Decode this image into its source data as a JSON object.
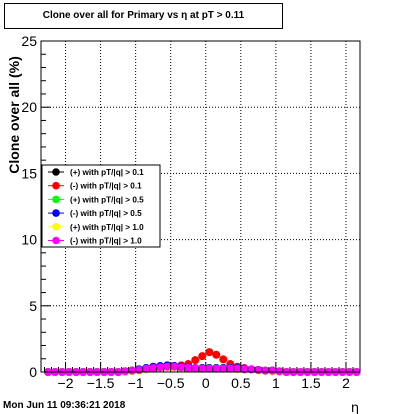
{
  "title": "Clone  over all for Primary vs   η at pT > 0.11",
  "datestamp": "Mon Jun 11 09:36:21 2018",
  "chart_data": {
    "type": "scatter",
    "title": "Clone  over all for Primary vs   η at pT > 0.11",
    "xlabel": "η",
    "ylabel": "Clone  over all (%)",
    "xlim": [
      -2.35,
      2.2
    ],
    "ylim": [
      0,
      25
    ],
    "grid": true,
    "legend_position": "left",
    "xticks": [
      -2,
      -1.5,
      -1,
      -0.5,
      0,
      0.5,
      1,
      1.5,
      2
    ],
    "xtick_labels": [
      "−2",
      "−1.5",
      "−1",
      "−0.5",
      "0",
      "0.5",
      "1",
      "1.5",
      "2"
    ],
    "yticks": [
      0,
      5,
      10,
      15,
      20,
      25
    ],
    "ytick_labels": [
      "0",
      "5",
      "10",
      "15",
      "20",
      "25"
    ],
    "x": [
      -2.25,
      -2.15,
      -2.05,
      -1.95,
      -1.85,
      -1.75,
      -1.65,
      -1.55,
      -1.45,
      -1.35,
      -1.25,
      -1.15,
      -1.05,
      -0.95,
      -0.85,
      -0.75,
      -0.65,
      -0.55,
      -0.45,
      -0.35,
      -0.25,
      -0.15,
      -0.05,
      0.05,
      0.15,
      0.25,
      0.35,
      0.45,
      0.55,
      0.65,
      0.75,
      0.85,
      0.95,
      1.05,
      1.15,
      1.25,
      1.35,
      1.45,
      1.55,
      1.65,
      1.75,
      1.85,
      1.95,
      2.05,
      2.15
    ],
    "series": [
      {
        "name": "(+) with pT/|q| > 0.1",
        "color": "#000000",
        "values": [
          0,
          0,
          0,
          0,
          0,
          0,
          0,
          0,
          0,
          0,
          0,
          0.05,
          0.1,
          0.2,
          0.3,
          0.35,
          0.4,
          0.45,
          0.45,
          0.4,
          0.35,
          0.3,
          0.3,
          0.3,
          0.3,
          0.3,
          0.35,
          0.3,
          0.25,
          0.2,
          0.15,
          0.1,
          0.1,
          0.05,
          0,
          0,
          0,
          0,
          0,
          0,
          0,
          0,
          0,
          0,
          0
        ]
      },
      {
        "name": "(-) with pT/|q| > 0.1",
        "color": "#ff0000",
        "values": [
          0,
          0,
          0,
          0,
          0,
          0,
          0,
          0,
          0,
          0,
          0,
          0.05,
          0.1,
          0.15,
          0.2,
          0.3,
          0.4,
          0.45,
          0.45,
          0.5,
          0.6,
          0.9,
          1.2,
          1.5,
          1.3,
          0.95,
          0.6,
          0.4,
          0.3,
          0.2,
          0.15,
          0.1,
          0.05,
          0.05,
          0,
          0,
          0,
          0,
          0,
          0,
          0,
          0,
          0,
          0,
          0
        ]
      },
      {
        "name": "(+) with pT/|q| > 0.5",
        "color": "#00ff00",
        "values": [
          0,
          0,
          0,
          0,
          0,
          0,
          0,
          0,
          0,
          0,
          0,
          0,
          0.1,
          0.2,
          0.3,
          0.35,
          0.4,
          0.45,
          0.4,
          0.35,
          0.3,
          0.3,
          0.3,
          0.3,
          0.3,
          0.3,
          0.3,
          0.3,
          0.25,
          0.2,
          0.15,
          0.1,
          0.1,
          0.05,
          0,
          0,
          0,
          0,
          0,
          0,
          0,
          0,
          0,
          0,
          0
        ]
      },
      {
        "name": "(-) with pT/|q| > 0.5",
        "color": "#0000ff",
        "values": [
          0,
          0,
          0,
          0,
          0,
          0,
          0,
          0,
          0,
          0,
          0,
          0.05,
          0.1,
          0.2,
          0.3,
          0.4,
          0.45,
          0.5,
          0.45,
          0.4,
          0.35,
          0.3,
          0.3,
          0.3,
          0.3,
          0.3,
          0.3,
          0.3,
          0.25,
          0.2,
          0.15,
          0.1,
          0.1,
          0.05,
          0,
          0,
          0,
          0,
          0,
          0,
          0,
          0,
          0,
          0,
          0
        ]
      },
      {
        "name": "(+) with pT/|q| > 1.0",
        "color": "#ffff00",
        "values": [
          0,
          0,
          0,
          0,
          0,
          0,
          0,
          0,
          0,
          0,
          0,
          0,
          0.05,
          0.1,
          0.2,
          0.25,
          0.3,
          0.35,
          0.35,
          0.3,
          0.3,
          0.25,
          0.25,
          0.25,
          0.25,
          0.25,
          0.25,
          0.2,
          0.2,
          0.15,
          0.1,
          0.1,
          0.05,
          0.05,
          0,
          0,
          0,
          0,
          0,
          0,
          0,
          0,
          0,
          0,
          0
        ]
      },
      {
        "name": "(-) with pT/|q| > 1.0",
        "color": "#ff00ff",
        "values": [
          0,
          0,
          0,
          0,
          0,
          0,
          0,
          0,
          0,
          0,
          0,
          0.05,
          0.1,
          0.15,
          0.25,
          0.3,
          0.35,
          0.4,
          0.4,
          0.35,
          0.3,
          0.3,
          0.25,
          0.25,
          0.25,
          0.25,
          0.25,
          0.25,
          0.2,
          0.2,
          0.15,
          0.1,
          0.1,
          0.05,
          0,
          0,
          0,
          0,
          0,
          0,
          0,
          0,
          0,
          0,
          0
        ]
      }
    ]
  }
}
